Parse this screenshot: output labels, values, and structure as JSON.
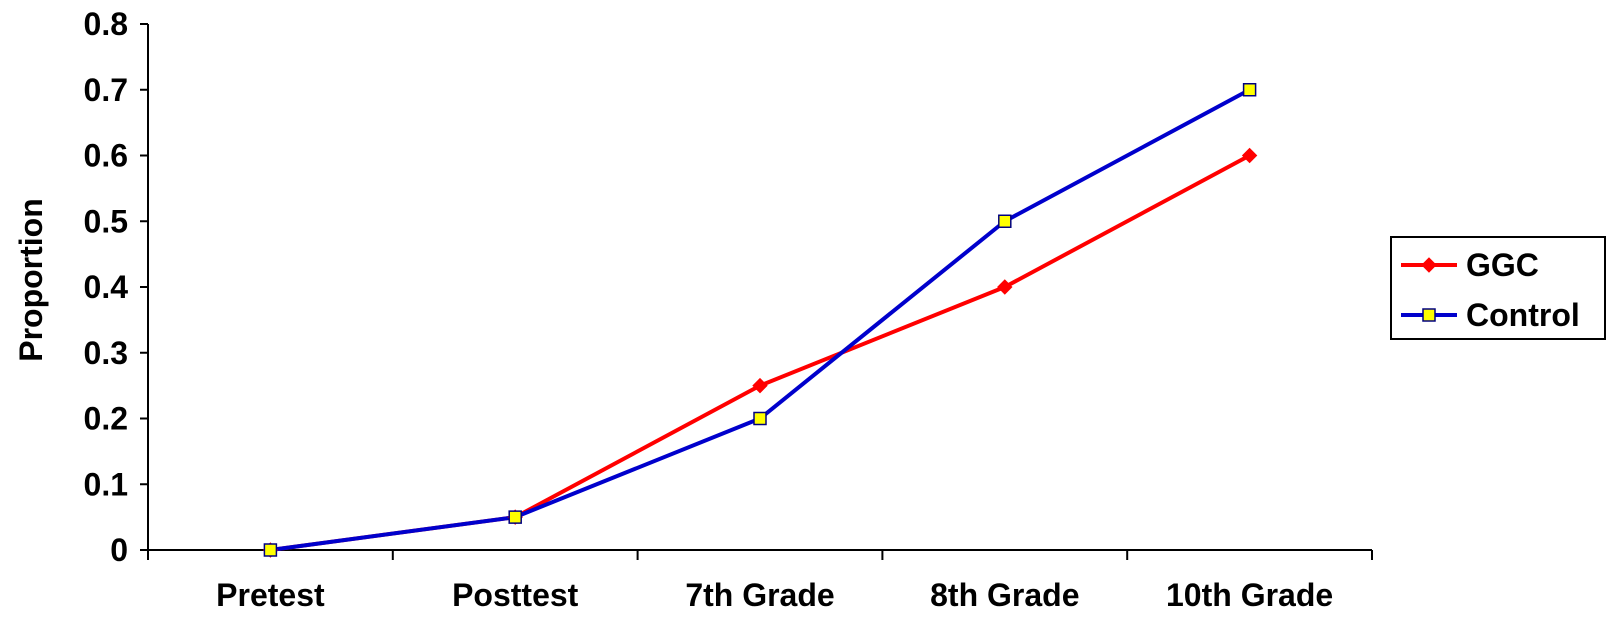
{
  "chart_data": {
    "type": "line",
    "title": "",
    "xlabel": "",
    "ylabel": "Proportion",
    "categories": [
      "Pretest",
      "Posttest",
      "7th Grade",
      "8th Grade",
      "10th Grade"
    ],
    "ylim": [
      0,
      0.8
    ],
    "yticks": [
      "0",
      "0.1",
      "0.2",
      "0.3",
      "0.4",
      "0.5",
      "0.6",
      "0.7",
      "0.8"
    ],
    "grid": false,
    "legend_position": "right",
    "series": [
      {
        "name": "GGC",
        "color": "#ff0000",
        "marker": "diamond",
        "marker_fill": "#ff0000",
        "values": [
          0,
          0.05,
          0.25,
          0.4,
          0.6
        ]
      },
      {
        "name": "Control",
        "color": "#0000cc",
        "marker": "square",
        "marker_fill": "#ffff00",
        "values": [
          0,
          0.05,
          0.2,
          0.5,
          0.7
        ]
      }
    ]
  }
}
